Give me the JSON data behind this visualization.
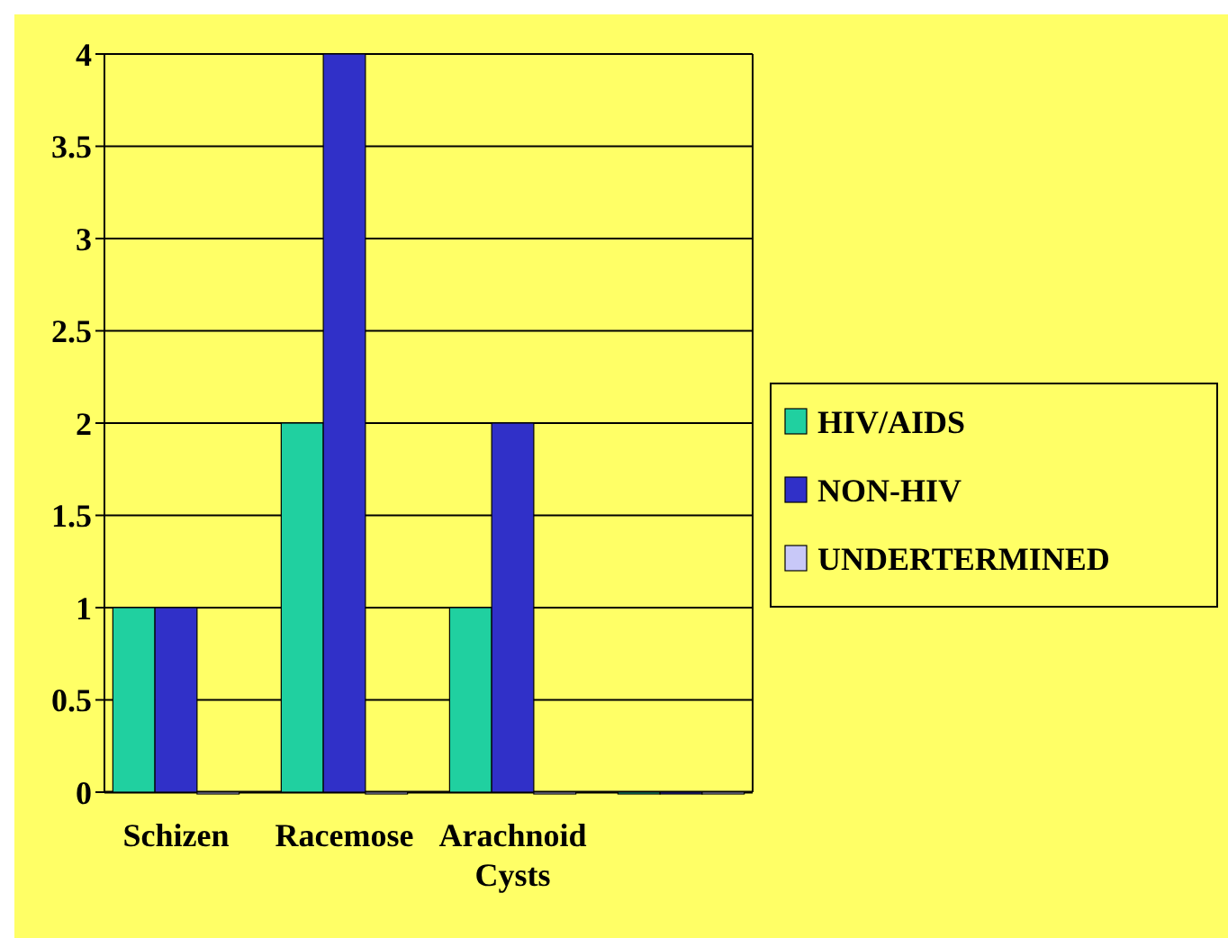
{
  "chart_data": {
    "type": "bar",
    "categories": [
      "Schizen",
      "Racemose",
      "Arachnoid Cysts",
      null
    ],
    "series": [
      {
        "name": "HIV/AIDS",
        "color": "#20d0a0",
        "values": [
          1,
          2,
          1,
          0
        ]
      },
      {
        "name": "NON-HIV",
        "color": "#3030c8",
        "values": [
          1,
          4,
          2,
          0
        ]
      },
      {
        "name": "UNDERTERMINED",
        "color": "#c8c8f8",
        "values": [
          0,
          0,
          0,
          0
        ]
      }
    ],
    "ylim": [
      0,
      4
    ],
    "yticks": [
      0,
      0.5,
      1,
      1.5,
      2,
      2.5,
      3,
      3.5,
      4
    ],
    "grid": "y",
    "legend": "right"
  }
}
